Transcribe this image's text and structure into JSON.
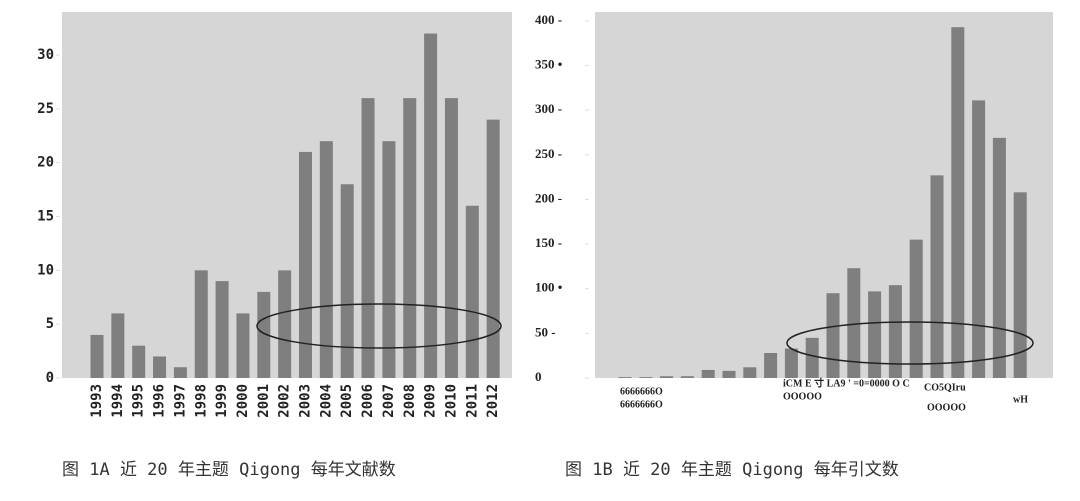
{
  "chart_data": [
    {
      "type": "bar",
      "caption": "图 1A 近 20 年主题 Qigong 每年文献数",
      "categories": [
        "1993",
        "1994",
        "1995",
        "1996",
        "1997",
        "1998",
        "1999",
        "2000",
        "2001",
        "2002",
        "2003",
        "2004",
        "2005",
        "2006",
        "2007",
        "2008",
        "2009",
        "2010",
        "2011",
        "2012"
      ],
      "values": [
        4,
        6,
        3,
        2,
        1,
        10,
        9,
        6,
        8,
        10,
        21,
        22,
        18,
        26,
        22,
        26,
        32,
        26,
        16,
        24
      ],
      "color": "#7f7f7f",
      "ylim": [
        0,
        34
      ],
      "yticks": [
        0,
        5,
        10,
        15,
        20,
        25,
        30
      ]
    },
    {
      "type": "bar",
      "caption": "图 1B 近 20 年主题 Qigong 每年引文数",
      "values": [
        1,
        1,
        2,
        2,
        9,
        8,
        12,
        28,
        33,
        45,
        95,
        123,
        97,
        104,
        155,
        227,
        393,
        311,
        269,
        208
      ],
      "color": "#7f7f7f",
      "ylim": [
        0,
        410
      ],
      "yticks": [
        0,
        {
          "value": 50,
          "label": "50 -"
        },
        {
          "value": 100,
          "label": "100 •"
        },
        {
          "value": 150,
          "label": "150 -"
        },
        {
          "value": 200,
          "label": "200 -"
        },
        {
          "value": 250,
          "label": "250 -"
        },
        {
          "value": 300,
          "label": "300 -"
        },
        {
          "value": 350,
          "label": "350 •"
        },
        {
          "value": 400,
          "label": "400 -"
        }
      ],
      "annotations": [
        "6666666O",
        "6666666O",
        "iCM E 寸 LA9 ' =0=0000 O C",
        "OOOOO",
        "CO5QIru",
        "OOOOO",
        "wH"
      ]
    }
  ]
}
